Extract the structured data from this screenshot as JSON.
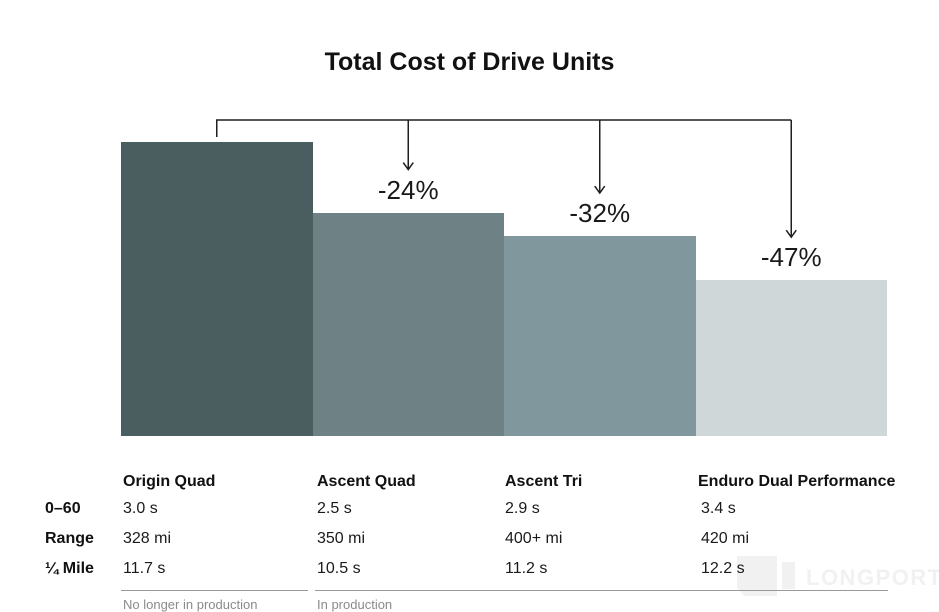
{
  "title": "Total Cost of Drive Units",
  "chart_data": {
    "type": "bar",
    "title": "Total Cost of Drive Units",
    "categories": [
      "Origin Quad",
      "Ascent Quad",
      "Ascent Tri",
      "Enduro Dual Performance"
    ],
    "values": [
      100,
      76,
      68,
      53
    ],
    "value_unit": "relative cost indexed to Origin Quad = 100",
    "bar_labels": [
      "",
      "-24%",
      "-32%",
      "-47%"
    ],
    "bar_colors": [
      "#4a5e60",
      "#6e8184",
      "#7f979d",
      "#d0d7d8"
    ],
    "ylim": [
      0,
      100
    ],
    "grid": false,
    "legend": "none",
    "annotation": "bracket from first bar with downward arrows showing percent cost reduction versus Origin Quad"
  },
  "table": {
    "row_labels": [
      "0–60",
      "Range",
      "¼ Mile"
    ],
    "columns": [
      {
        "name": "Origin Quad",
        "values": [
          "3.0 s",
          "328 mi",
          "11.7 s"
        ],
        "note": "No longer in production"
      },
      {
        "name": "Ascent Quad",
        "values": [
          "2.5 s",
          "350 mi",
          "10.5 s"
        ],
        "note": "In production"
      },
      {
        "name": "Ascent Tri",
        "values": [
          "2.9 s",
          "400+ mi",
          "11.2 s"
        ],
        "note": ""
      },
      {
        "name": "Enduro Dual Performance",
        "values": [
          "3.4 s",
          "420 mi",
          "12.2 s"
        ],
        "note": ""
      }
    ]
  },
  "watermark": {
    "text": "LONGPORT"
  },
  "colors": {
    "background": "#ffffff",
    "arrow": "#1f1f1f",
    "title_text": "#111111",
    "note_text": "#8a8a8a",
    "rule": "#999999",
    "watermark": "#f1f1f1"
  }
}
